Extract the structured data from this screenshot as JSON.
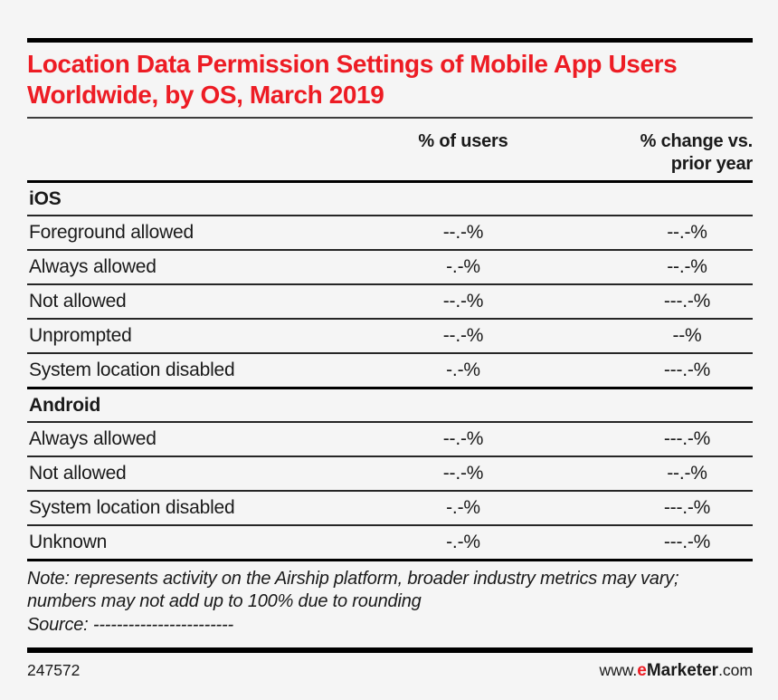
{
  "chart_data": {
    "type": "table",
    "title": "Location Data Permission Settings of Mobile App Users Worldwide, by OS, March 2019",
    "columns": [
      "% of users",
      "% change vs. prior year"
    ],
    "sections": [
      {
        "name": "iOS",
        "rows": [
          {
            "label": "Foreground allowed",
            "users": "--.-%",
            "change": "--.-%"
          },
          {
            "label": "Always allowed",
            "users": "-.-%",
            "change": "--.-%"
          },
          {
            "label": "Not allowed",
            "users": "--.-%",
            "change": "---.-%"
          },
          {
            "label": "Unprompted",
            "users": "--.-%",
            "change": "--%"
          },
          {
            "label": "System location disabled",
            "users": "-.-%",
            "change": "---.-%"
          }
        ]
      },
      {
        "name": "Android",
        "rows": [
          {
            "label": "Always allowed",
            "users": "--.-%",
            "change": "---.-%"
          },
          {
            "label": "Not allowed",
            "users": "--.-%",
            "change": "--.-%"
          },
          {
            "label": "System location disabled",
            "users": "-.-%",
            "change": "---.-%"
          },
          {
            "label": "Unknown",
            "users": "-.-%",
            "change": "---.-%"
          }
        ]
      }
    ],
    "note": "Note: represents activity on the Airship platform, broader industry metrics may vary; numbers may not add up to 100% due to rounding",
    "source": "Source: ------------------------"
  },
  "footer": {
    "chart_id": "247572",
    "site_prefix": "www.",
    "brand_e": "e",
    "brand_rest": "Marketer",
    "site_suffix": ".com"
  },
  "colors": {
    "accent_red": "#ed1c24",
    "background": "#f5f5f5",
    "text": "#1a1a1a"
  }
}
